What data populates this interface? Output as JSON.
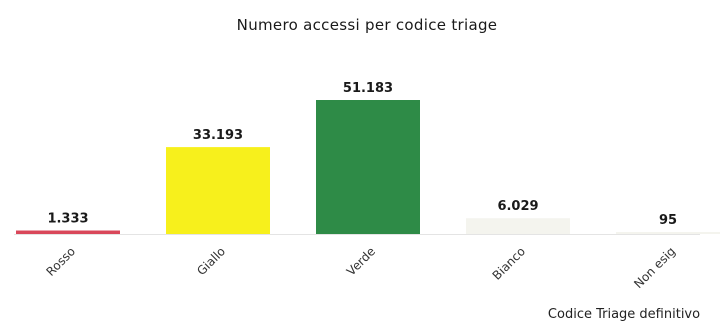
{
  "chart_data": {
    "type": "bar",
    "title": "Numero accessi per codice triage",
    "xlabel": "Codice Triage definitivo",
    "ylabel": "",
    "categories": [
      "Rosso",
      "Giallo",
      "Verde",
      "Bianco",
      "Non esig"
    ],
    "values": [
      1333,
      33193,
      51183,
      6029,
      95
    ],
    "value_labels": [
      "1.333",
      "33.193",
      "51.183",
      "6.029",
      "95"
    ],
    "colors": [
      "#d9475a",
      "#f7f01c",
      "#2e8b47",
      "#f4f4ee",
      "#f4f4ee"
    ],
    "ylim": [
      0,
      51183
    ],
    "grid": false,
    "legend": "none"
  }
}
